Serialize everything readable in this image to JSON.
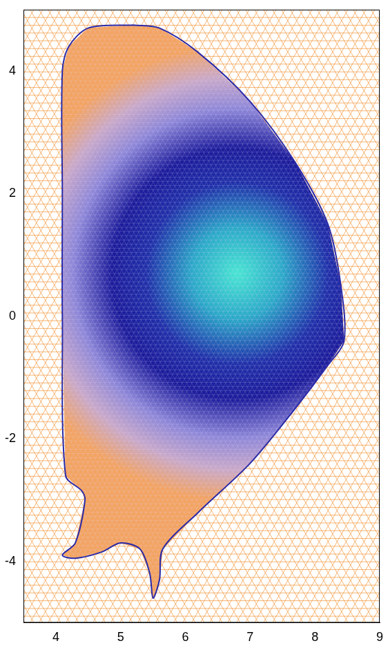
{
  "chart_data": {
    "type": "line",
    "x": [
      5.2,
      5.6,
      6.2,
      7.0,
      7.7,
      8.2,
      8.4,
      8.45,
      8.2,
      7.7,
      7.0,
      6.2,
      5.65,
      5.6,
      5.5,
      5.45,
      5.3,
      5.0,
      4.7,
      4.3,
      4.1,
      4.3,
      4.45,
      4.4,
      4.15,
      4.1,
      4.1,
      4.1,
      4.2,
      4.5,
      5.2
    ],
    "values": [
      4.75,
      4.7,
      4.3,
      3.5,
      2.5,
      1.5,
      0.5,
      -0.4,
      -0.8,
      -1.5,
      -2.4,
      -3.2,
      -3.8,
      -4.3,
      -4.6,
      -4.2,
      -3.8,
      -3.7,
      -3.85,
      -3.95,
      -3.9,
      -3.7,
      -3.0,
      -2.85,
      -2.6,
      0.0,
      2.0,
      4.0,
      4.4,
      4.7,
      4.75
    ],
    "color": "#2a2aa8",
    "line_style": "solid",
    "peak": {
      "x": 6.8,
      "y": 0.7
    },
    "xlim": [
      3.5,
      9
    ],
    "xticks": [
      4,
      5,
      6,
      7,
      8,
      9
    ],
    "ylim": [
      -5,
      5
    ],
    "yticks": [
      -4,
      -2,
      0,
      2,
      4
    ],
    "grid": false
  }
}
